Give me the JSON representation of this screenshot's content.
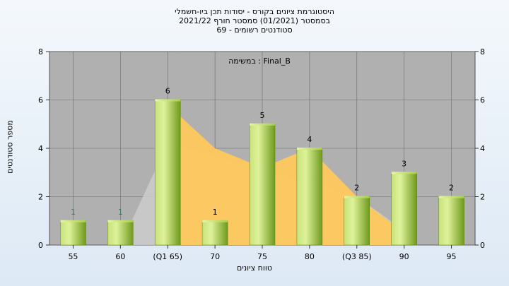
{
  "chart_data": {
    "type": "bar",
    "title_lines": [
      "היסטוגרמת ציונים בקורס - יסודות תכן ביו-חשמלי",
      "בסמסטר  (01/2021)  סמסטר חורף 2021/22",
      "סטודנטים רשומים - 69"
    ],
    "annotation": "Final_B : במשימה",
    "xlabel": "טווח ציונים",
    "ylabel": "מספר סטודנטים",
    "categories": [
      "55",
      "60",
      "(Q1 65)",
      "70",
      "75",
      "80",
      "(Q3 85)",
      "90",
      "95"
    ],
    "values": [
      1,
      1,
      6,
      1,
      5,
      4,
      2,
      3,
      2
    ],
    "data_labels": [
      "1",
      "1",
      "6",
      "1",
      "5",
      "4",
      "2",
      "3",
      "2"
    ],
    "ylim": [
      0,
      8
    ],
    "yticks": [
      "0",
      "2",
      "4",
      "6",
      "8"
    ],
    "yticks_right": [
      "0",
      "2",
      "4",
      "6",
      "8"
    ],
    "distribution_curve": {
      "x": [
        "(Q1 65)",
        "70",
        "75",
        "80",
        "(Q3 85)",
        "90"
      ],
      "values": [
        5.8,
        4.0,
        3.2,
        4.0,
        2.0,
        0.5
      ]
    },
    "background_band": {
      "x": [
        "60",
        "(Q1 65)",
        "(Q3 85)",
        "90"
      ],
      "values": [
        0,
        4.2,
        2.0,
        0.6
      ]
    },
    "grid": true,
    "colors": {
      "plot_bg": "#b0b0b0",
      "bar_light": "#d8ef8e",
      "bar_dark": "#6f9a1d",
      "curve_fill": "#ffc85c",
      "band_fill": "#cdcdcd",
      "grid": "#6a6a6a"
    }
  }
}
